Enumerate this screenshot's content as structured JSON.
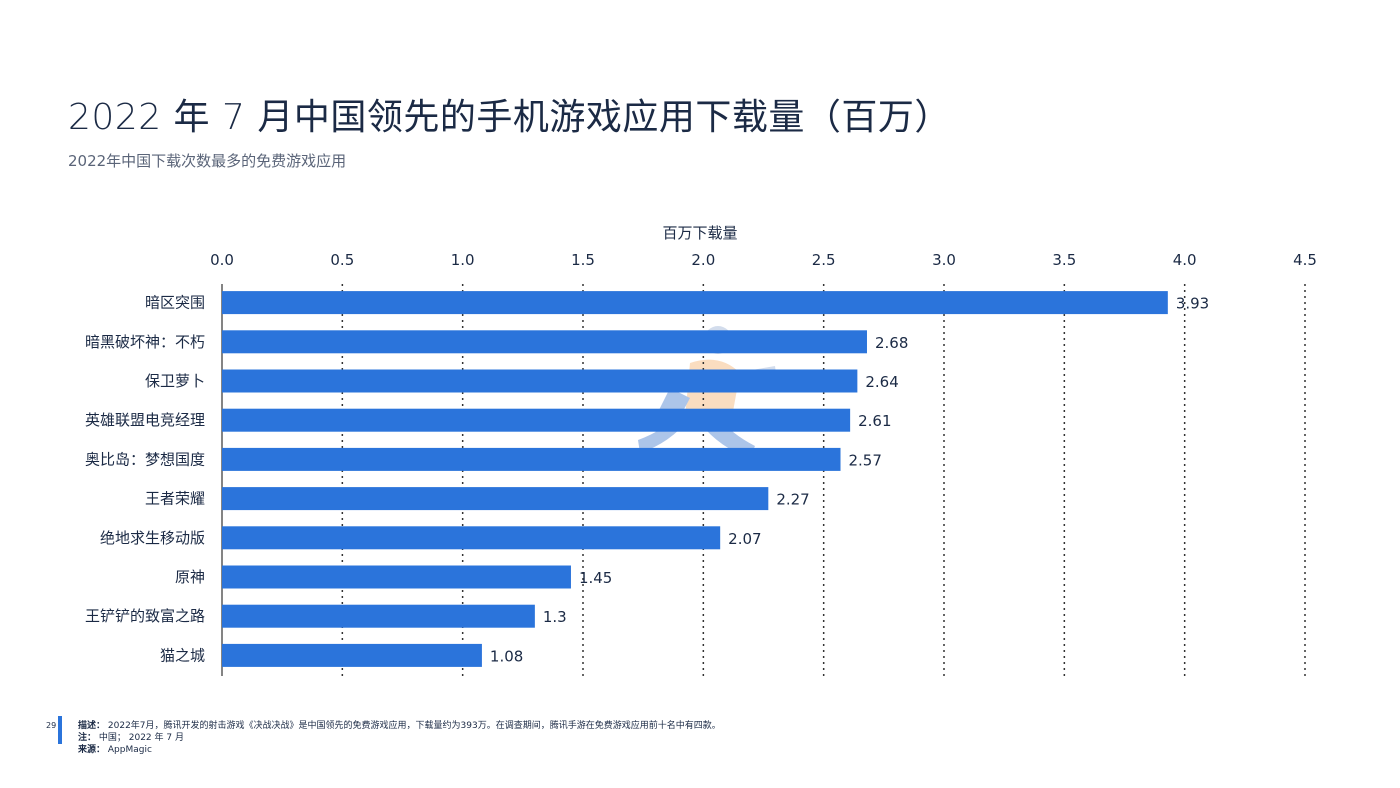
{
  "header": {
    "title": "2022 年 7 月中国领先的手机游戏应用下载量（百万）",
    "subtitle": "2022年中国下载次数最多的免费游戏应用"
  },
  "chart_data": {
    "type": "bar",
    "orientation": "horizontal",
    "xlabel": "百万下载量",
    "xlim": [
      0,
      4.5
    ],
    "xticks": [
      "0.0",
      "0.5",
      "1.0",
      "1.5",
      "2.0",
      "2.5",
      "3.0",
      "3.5",
      "4.0",
      "4.5"
    ],
    "grid": true,
    "bar_color": "#2b74db",
    "categories": [
      "暗区突围",
      "暗黑破坏神：不朽",
      "保卫萝卜",
      "英雄联盟电竞经理",
      "奥比岛：梦想国度",
      "王者荣耀",
      "绝地求生移动版",
      "原神",
      "王铲铲的致富之路",
      "猫之城"
    ],
    "values": [
      3.93,
      2.68,
      2.64,
      2.61,
      2.57,
      2.27,
      2.07,
      1.45,
      1.3,
      1.08
    ],
    "value_labels": [
      "3.93",
      "2.68",
      "2.64",
      "2.61",
      "2.57",
      "2.27",
      "2.07",
      "1.45",
      "1.3",
      "1.08"
    ]
  },
  "footer": {
    "page_number": "29",
    "description_label": "描述：",
    "description": "2022年7月，腾讯开发的射击游戏《决战决战》是中国领先的免费游戏应用，下载量约为393万。在调查期间，腾讯手游在免费游戏应用前十名中有四款。",
    "note_label": "注：",
    "note": "中国； 2022 年 7 月",
    "source_label": "来源：",
    "source": "AppMagic"
  }
}
